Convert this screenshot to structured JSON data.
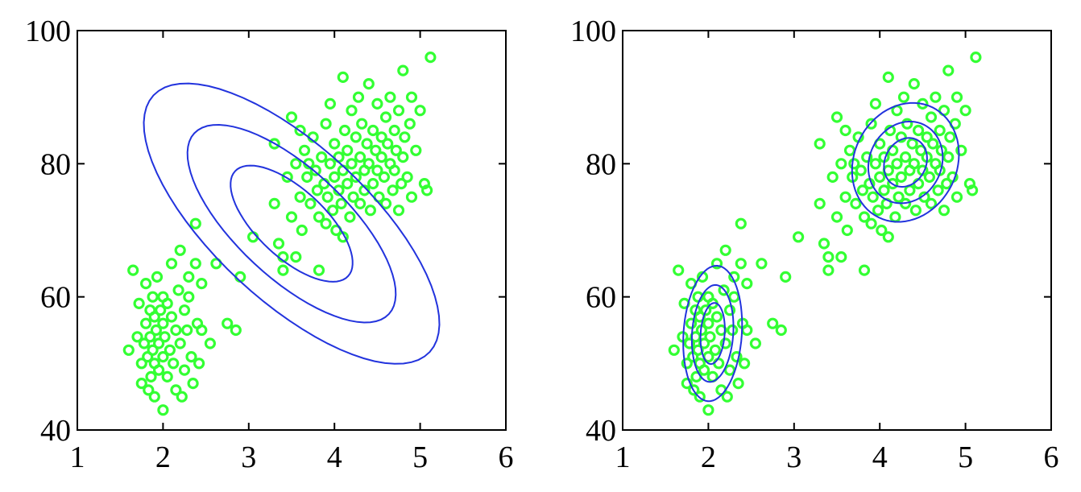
{
  "chart_data": [
    {
      "type": "scatter",
      "title": "",
      "xlabel": "",
      "ylabel": "",
      "xlim": [
        1,
        6
      ],
      "ylim": [
        40,
        100
      ],
      "x_ticks": [
        1,
        2,
        3,
        4,
        5,
        6
      ],
      "y_ticks": [
        40,
        60,
        80,
        100
      ],
      "grid": false,
      "legend": "none",
      "marker": "open-circle",
      "marker_color": "#33ff33",
      "contour_color": "#2233dd",
      "points": [
        [
          1.6,
          52
        ],
        [
          1.65,
          64
        ],
        [
          1.7,
          54
        ],
        [
          1.72,
          59
        ],
        [
          1.75,
          50
        ],
        [
          1.75,
          47
        ],
        [
          1.78,
          53
        ],
        [
          1.8,
          62
        ],
        [
          1.8,
          56
        ],
        [
          1.82,
          51
        ],
        [
          1.83,
          46
        ],
        [
          1.85,
          58
        ],
        [
          1.85,
          54
        ],
        [
          1.86,
          48
        ],
        [
          1.88,
          60
        ],
        [
          1.88,
          52
        ],
        [
          1.9,
          57
        ],
        [
          1.9,
          50
        ],
        [
          1.9,
          45
        ],
        [
          1.92,
          55
        ],
        [
          1.93,
          63
        ],
        [
          1.95,
          49
        ],
        [
          1.95,
          53
        ],
        [
          1.97,
          58
        ],
        [
          2.0,
          43
        ],
        [
          2.0,
          51
        ],
        [
          2.0,
          56
        ],
        [
          2.0,
          60
        ],
        [
          2.02,
          54
        ],
        [
          2.05,
          48
        ],
        [
          2.05,
          59
        ],
        [
          2.08,
          52
        ],
        [
          2.1,
          65
        ],
        [
          2.1,
          57
        ],
        [
          2.12,
          50
        ],
        [
          2.15,
          55
        ],
        [
          2.15,
          46
        ],
        [
          2.18,
          61
        ],
        [
          2.2,
          53
        ],
        [
          2.2,
          67
        ],
        [
          2.22,
          45
        ],
        [
          2.25,
          58
        ],
        [
          2.25,
          49
        ],
        [
          2.28,
          55
        ],
        [
          2.3,
          63
        ],
        [
          2.3,
          60
        ],
        [
          2.33,
          51
        ],
        [
          2.35,
          47
        ],
        [
          2.38,
          65
        ],
        [
          2.38,
          71
        ],
        [
          2.4,
          56
        ],
        [
          2.42,
          50
        ],
        [
          2.45,
          62
        ],
        [
          2.45,
          55
        ],
        [
          2.55,
          53
        ],
        [
          2.62,
          65
        ],
        [
          2.9,
          63
        ],
        [
          2.75,
          56
        ],
        [
          2.85,
          55
        ],
        [
          3.05,
          69
        ],
        [
          3.3,
          83
        ],
        [
          3.3,
          74
        ],
        [
          3.35,
          68
        ],
        [
          3.4,
          66
        ],
        [
          3.4,
          64
        ],
        [
          3.45,
          78
        ],
        [
          3.5,
          87
        ],
        [
          3.5,
          72
        ],
        [
          3.55,
          80
        ],
        [
          3.55,
          66
        ],
        [
          3.6,
          85
        ],
        [
          3.6,
          75
        ],
        [
          3.62,
          70
        ],
        [
          3.65,
          82
        ],
        [
          3.68,
          78
        ],
        [
          3.7,
          80
        ],
        [
          3.72,
          74
        ],
        [
          3.75,
          84
        ],
        [
          3.78,
          79
        ],
        [
          3.8,
          76
        ],
        [
          3.82,
          72
        ],
        [
          3.82,
          64
        ],
        [
          3.85,
          81
        ],
        [
          3.88,
          77
        ],
        [
          3.9,
          86
        ],
        [
          3.9,
          71
        ],
        [
          3.92,
          75
        ],
        [
          3.95,
          89
        ],
        [
          3.95,
          80
        ],
        [
          3.98,
          73
        ],
        [
          4.0,
          83
        ],
        [
          4.0,
          78
        ],
        [
          4.02,
          70
        ],
        [
          4.05,
          76
        ],
        [
          4.05,
          81
        ],
        [
          4.08,
          74
        ],
        [
          4.1,
          93
        ],
        [
          4.1,
          79
        ],
        [
          4.1,
          69
        ],
        [
          4.12,
          85
        ],
        [
          4.15,
          77
        ],
        [
          4.15,
          82
        ],
        [
          4.18,
          72
        ],
        [
          4.2,
          80
        ],
        [
          4.2,
          88
        ],
        [
          4.22,
          75
        ],
        [
          4.25,
          84
        ],
        [
          4.25,
          78
        ],
        [
          4.28,
          90
        ],
        [
          4.3,
          81
        ],
        [
          4.3,
          74
        ],
        [
          4.32,
          86
        ],
        [
          4.35,
          79
        ],
        [
          4.35,
          76
        ],
        [
          4.38,
          83
        ],
        [
          4.4,
          92
        ],
        [
          4.4,
          80
        ],
        [
          4.42,
          73
        ],
        [
          4.45,
          85
        ],
        [
          4.45,
          77
        ],
        [
          4.48,
          82
        ],
        [
          4.5,
          89
        ],
        [
          4.5,
          79
        ],
        [
          4.52,
          75
        ],
        [
          4.55,
          84
        ],
        [
          4.55,
          81
        ],
        [
          4.58,
          78
        ],
        [
          4.6,
          87
        ],
        [
          4.6,
          74
        ],
        [
          4.62,
          83
        ],
        [
          4.65,
          80
        ],
        [
          4.65,
          90
        ],
        [
          4.68,
          76
        ],
        [
          4.7,
          85
        ],
        [
          4.7,
          79
        ],
        [
          4.72,
          82
        ],
        [
          4.75,
          73
        ],
        [
          4.75,
          88
        ],
        [
          4.78,
          77
        ],
        [
          4.8,
          94
        ],
        [
          4.8,
          81
        ],
        [
          4.82,
          84
        ],
        [
          4.85,
          78
        ],
        [
          4.88,
          86
        ],
        [
          4.9,
          75
        ],
        [
          4.9,
          90
        ],
        [
          4.95,
          82
        ],
        [
          5.0,
          88
        ],
        [
          5.05,
          77
        ],
        [
          5.08,
          76
        ],
        [
          5.12,
          96
        ]
      ],
      "contours": [
        {
          "center": [
            3.5,
            71
          ],
          "rx": 0.9,
          "ry": 5.1,
          "angle_deg": 42.9
        },
        {
          "center": [
            3.5,
            71
          ],
          "rx": 1.55,
          "ry": 8.2,
          "angle_deg": 42.9
        },
        {
          "center": [
            3.5,
            71
          ],
          "rx": 2.2,
          "ry": 11.6,
          "angle_deg": 42.9
        }
      ]
    },
    {
      "type": "scatter",
      "title": "",
      "xlabel": "",
      "ylabel": "",
      "xlim": [
        1,
        6
      ],
      "ylim": [
        40,
        100
      ],
      "x_ticks": [
        1,
        2,
        3,
        4,
        5,
        6
      ],
      "y_ticks": [
        40,
        60,
        80,
        100
      ],
      "grid": false,
      "legend": "none",
      "marker": "open-circle",
      "marker_color": "#33ff33",
      "contour_color": "#2233dd",
      "points": [
        [
          1.6,
          52
        ],
        [
          1.65,
          64
        ],
        [
          1.7,
          54
        ],
        [
          1.72,
          59
        ],
        [
          1.75,
          50
        ],
        [
          1.75,
          47
        ],
        [
          1.78,
          53
        ],
        [
          1.8,
          62
        ],
        [
          1.8,
          56
        ],
        [
          1.82,
          51
        ],
        [
          1.83,
          46
        ],
        [
          1.85,
          58
        ],
        [
          1.85,
          54
        ],
        [
          1.86,
          48
        ],
        [
          1.88,
          60
        ],
        [
          1.88,
          52
        ],
        [
          1.9,
          57
        ],
        [
          1.9,
          50
        ],
        [
          1.9,
          45
        ],
        [
          1.92,
          55
        ],
        [
          1.93,
          63
        ],
        [
          1.95,
          49
        ],
        [
          1.95,
          53
        ],
        [
          1.97,
          58
        ],
        [
          2.0,
          43
        ],
        [
          2.0,
          51
        ],
        [
          2.0,
          56
        ],
        [
          2.0,
          60
        ],
        [
          2.02,
          54
        ],
        [
          2.05,
          48
        ],
        [
          2.05,
          59
        ],
        [
          2.08,
          52
        ],
        [
          2.1,
          65
        ],
        [
          2.1,
          57
        ],
        [
          2.12,
          50
        ],
        [
          2.15,
          55
        ],
        [
          2.15,
          46
        ],
        [
          2.18,
          61
        ],
        [
          2.2,
          53
        ],
        [
          2.2,
          67
        ],
        [
          2.22,
          45
        ],
        [
          2.25,
          58
        ],
        [
          2.25,
          49
        ],
        [
          2.28,
          55
        ],
        [
          2.3,
          63
        ],
        [
          2.3,
          60
        ],
        [
          2.33,
          51
        ],
        [
          2.35,
          47
        ],
        [
          2.38,
          65
        ],
        [
          2.38,
          71
        ],
        [
          2.4,
          56
        ],
        [
          2.42,
          50
        ],
        [
          2.45,
          62
        ],
        [
          2.45,
          55
        ],
        [
          2.55,
          53
        ],
        [
          2.62,
          65
        ],
        [
          2.9,
          63
        ],
        [
          2.75,
          56
        ],
        [
          2.85,
          55
        ],
        [
          3.05,
          69
        ],
        [
          3.3,
          83
        ],
        [
          3.3,
          74
        ],
        [
          3.35,
          68
        ],
        [
          3.4,
          66
        ],
        [
          3.4,
          64
        ],
        [
          3.45,
          78
        ],
        [
          3.5,
          87
        ],
        [
          3.5,
          72
        ],
        [
          3.55,
          80
        ],
        [
          3.55,
          66
        ],
        [
          3.6,
          85
        ],
        [
          3.6,
          75
        ],
        [
          3.62,
          70
        ],
        [
          3.65,
          82
        ],
        [
          3.68,
          78
        ],
        [
          3.7,
          80
        ],
        [
          3.72,
          74
        ],
        [
          3.75,
          84
        ],
        [
          3.78,
          79
        ],
        [
          3.8,
          76
        ],
        [
          3.82,
          72
        ],
        [
          3.82,
          64
        ],
        [
          3.85,
          81
        ],
        [
          3.88,
          77
        ],
        [
          3.9,
          86
        ],
        [
          3.9,
          71
        ],
        [
          3.92,
          75
        ],
        [
          3.95,
          89
        ],
        [
          3.95,
          80
        ],
        [
          3.98,
          73
        ],
        [
          4.0,
          83
        ],
        [
          4.0,
          78
        ],
        [
          4.02,
          70
        ],
        [
          4.05,
          76
        ],
        [
          4.05,
          81
        ],
        [
          4.08,
          74
        ],
        [
          4.1,
          93
        ],
        [
          4.1,
          79
        ],
        [
          4.1,
          69
        ],
        [
          4.12,
          85
        ],
        [
          4.15,
          77
        ],
        [
          4.15,
          82
        ],
        [
          4.18,
          72
        ],
        [
          4.2,
          80
        ],
        [
          4.2,
          88
        ],
        [
          4.22,
          75
        ],
        [
          4.25,
          84
        ],
        [
          4.25,
          78
        ],
        [
          4.28,
          90
        ],
        [
          4.3,
          81
        ],
        [
          4.3,
          74
        ],
        [
          4.32,
          86
        ],
        [
          4.35,
          79
        ],
        [
          4.35,
          76
        ],
        [
          4.38,
          83
        ],
        [
          4.4,
          92
        ],
        [
          4.4,
          80
        ],
        [
          4.42,
          73
        ],
        [
          4.45,
          85
        ],
        [
          4.45,
          77
        ],
        [
          4.48,
          82
        ],
        [
          4.5,
          89
        ],
        [
          4.5,
          79
        ],
        [
          4.52,
          75
        ],
        [
          4.55,
          84
        ],
        [
          4.55,
          81
        ],
        [
          4.58,
          78
        ],
        [
          4.6,
          87
        ],
        [
          4.6,
          74
        ],
        [
          4.62,
          83
        ],
        [
          4.65,
          80
        ],
        [
          4.65,
          90
        ],
        [
          4.68,
          76
        ],
        [
          4.7,
          85
        ],
        [
          4.7,
          79
        ],
        [
          4.72,
          82
        ],
        [
          4.75,
          73
        ],
        [
          4.75,
          88
        ],
        [
          4.78,
          77
        ],
        [
          4.8,
          94
        ],
        [
          4.8,
          81
        ],
        [
          4.82,
          84
        ],
        [
          4.85,
          78
        ],
        [
          4.88,
          86
        ],
        [
          4.9,
          75
        ],
        [
          4.9,
          90
        ],
        [
          4.95,
          82
        ],
        [
          5.0,
          88
        ],
        [
          5.05,
          77
        ],
        [
          5.08,
          76
        ],
        [
          5.12,
          96
        ]
      ],
      "contours": [
        {
          "center": [
            2.05,
            54.5
          ],
          "rx": 0.14,
          "ry": 4.6,
          "angle_deg": 4
        },
        {
          "center": [
            2.05,
            54.5
          ],
          "rx": 0.24,
          "ry": 7.3,
          "angle_deg": 4
        },
        {
          "center": [
            2.05,
            54.5
          ],
          "rx": 0.34,
          "ry": 10.2,
          "angle_deg": 4
        },
        {
          "center": [
            4.3,
            80.2
          ],
          "rx": 0.24,
          "ry": 3.8,
          "angle_deg": 26
        },
        {
          "center": [
            4.3,
            80.2
          ],
          "rx": 0.42,
          "ry": 6.3,
          "angle_deg": 26
        },
        {
          "center": [
            4.3,
            80.2
          ],
          "rx": 0.6,
          "ry": 9.2,
          "angle_deg": 26
        }
      ]
    }
  ]
}
